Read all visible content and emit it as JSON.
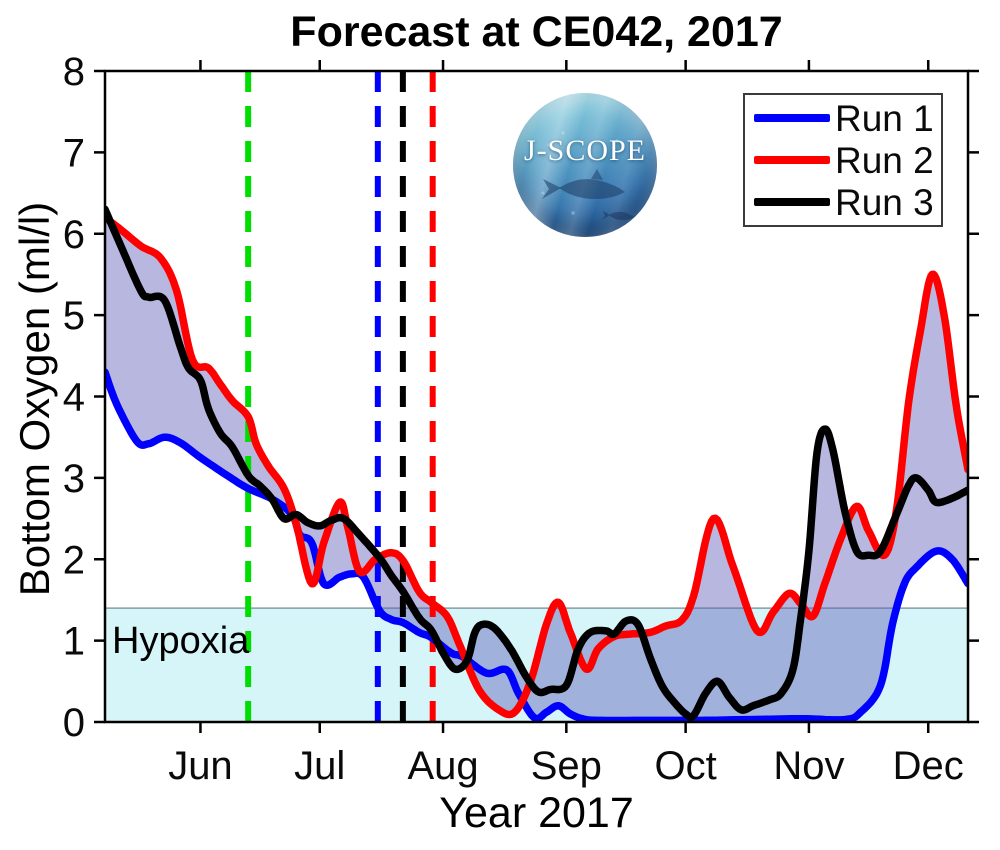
{
  "logo": {
    "text": "J-SCOPE"
  },
  "chart_data": {
    "type": "line",
    "title": "Forecast at CE042, 2017",
    "xlabel": "Year 2017",
    "ylabel": "Bottom Oxygen (ml/l)",
    "x_domain_days": [
      0,
      217
    ],
    "ylim": [
      0,
      8
    ],
    "yticks": [
      0,
      1,
      2,
      3,
      4,
      5,
      6,
      7,
      8
    ],
    "xticks": [
      {
        "label": "Jun",
        "t": 24
      },
      {
        "label": "Jul",
        "t": 54
      },
      {
        "label": "Aug",
        "t": 85
      },
      {
        "label": "Sep",
        "t": 116
      },
      {
        "label": "Oct",
        "t": 146
      },
      {
        "label": "Nov",
        "t": 177
      },
      {
        "label": "Dec",
        "t": 207
      }
    ],
    "grid": false,
    "legend_position": "top-right",
    "hypoxia": {
      "label": "Hypoxia",
      "threshold": 1.4,
      "band_color": "#d6f5f8"
    },
    "envelope_color": "rgba(95,95,185,0.45)",
    "forecast_markers": [
      {
        "name": "green-dashed-line",
        "color": "#00dd00",
        "t": 36
      },
      {
        "name": "blue-dashed-line",
        "color": "#0000ff",
        "t": 68.6
      },
      {
        "name": "black-dashed-line",
        "color": "#000000",
        "t": 74.9
      },
      {
        "name": "red-dashed-line",
        "color": "#ff0000",
        "t": 82.4
      }
    ],
    "series": [
      {
        "name": "Run 1",
        "color": "#0000ff",
        "points": [
          [
            0,
            4.3
          ],
          [
            3,
            3.9
          ],
          [
            8,
            3.45
          ],
          [
            11,
            3.42
          ],
          [
            15,
            3.5
          ],
          [
            19,
            3.43
          ],
          [
            24,
            3.25
          ],
          [
            31,
            3.02
          ],
          [
            36,
            2.87
          ],
          [
            42,
            2.74
          ],
          [
            47,
            2.55
          ],
          [
            49,
            2.3
          ],
          [
            52,
            2.2
          ],
          [
            55,
            1.7
          ],
          [
            59,
            1.78
          ],
          [
            62,
            1.82
          ],
          [
            65,
            1.78
          ],
          [
            69,
            1.37
          ],
          [
            72,
            1.26
          ],
          [
            75,
            1.22
          ],
          [
            79,
            1.1
          ],
          [
            82,
            1.04
          ],
          [
            87,
            0.85
          ],
          [
            90,
            0.8
          ],
          [
            96,
            0.6
          ],
          [
            101,
            0.64
          ],
          [
            104,
            0.35
          ],
          [
            108,
            0.05
          ],
          [
            111,
            0.12
          ],
          [
            114,
            0.2
          ],
          [
            117,
            0.1
          ],
          [
            120,
            0.04
          ],
          [
            124,
            0.02
          ],
          [
            137,
            0.02
          ],
          [
            150,
            0.02
          ],
          [
            162,
            0.03
          ],
          [
            175,
            0.04
          ],
          [
            186,
            0.03
          ],
          [
            190,
            0.12
          ],
          [
            195,
            0.45
          ],
          [
            198,
            1.2
          ],
          [
            201,
            1.7
          ],
          [
            204,
            1.9
          ],
          [
            209,
            2.1
          ],
          [
            213,
            2.0
          ],
          [
            217,
            1.7
          ]
        ]
      },
      {
        "name": "Run 2",
        "color": "#ff0000",
        "points": [
          [
            0,
            6.2
          ],
          [
            4,
            6.05
          ],
          [
            9,
            5.85
          ],
          [
            14,
            5.7
          ],
          [
            18,
            5.3
          ],
          [
            22,
            4.45
          ],
          [
            26,
            4.35
          ],
          [
            29,
            4.15
          ],
          [
            32,
            3.95
          ],
          [
            36,
            3.75
          ],
          [
            38,
            3.42
          ],
          [
            41,
            3.15
          ],
          [
            45,
            2.87
          ],
          [
            48,
            2.45
          ],
          [
            52,
            1.7
          ],
          [
            55,
            2.2
          ],
          [
            59,
            2.7
          ],
          [
            61,
            2.4
          ],
          [
            64,
            1.85
          ],
          [
            68,
            2.0
          ],
          [
            72,
            2.08
          ],
          [
            75,
            1.98
          ],
          [
            79,
            1.6
          ],
          [
            82,
            1.47
          ],
          [
            86,
            1.3
          ],
          [
            89,
            0.97
          ],
          [
            94,
            0.4
          ],
          [
            99,
            0.15
          ],
          [
            103,
            0.12
          ],
          [
            107,
            0.5
          ],
          [
            111,
            1.2
          ],
          [
            114,
            1.47
          ],
          [
            117,
            1.1
          ],
          [
            121,
            0.65
          ],
          [
            124,
            0.9
          ],
          [
            128,
            1.05
          ],
          [
            132,
            1.08
          ],
          [
            137,
            1.1
          ],
          [
            141,
            1.18
          ],
          [
            145,
            1.25
          ],
          [
            148,
            1.55
          ],
          [
            153,
            2.5
          ],
          [
            158,
            1.9
          ],
          [
            164,
            1.12
          ],
          [
            168,
            1.35
          ],
          [
            172,
            1.58
          ],
          [
            175,
            1.45
          ],
          [
            178,
            1.3
          ],
          [
            181,
            1.7
          ],
          [
            185,
            2.25
          ],
          [
            189,
            2.65
          ],
          [
            192,
            2.35
          ],
          [
            196,
            2.05
          ],
          [
            199,
            2.6
          ],
          [
            202,
            3.9
          ],
          [
            205,
            4.8
          ],
          [
            208,
            5.5
          ],
          [
            211,
            5.0
          ],
          [
            214,
            3.9
          ],
          [
            217,
            3.1
          ]
        ]
      },
      {
        "name": "Run 3",
        "color": "#000000",
        "points": [
          [
            0,
            6.3
          ],
          [
            4,
            5.85
          ],
          [
            9,
            5.3
          ],
          [
            11,
            5.22
          ],
          [
            15,
            5.18
          ],
          [
            19,
            4.6
          ],
          [
            21,
            4.35
          ],
          [
            24,
            4.2
          ],
          [
            26,
            3.85
          ],
          [
            29,
            3.55
          ],
          [
            32,
            3.38
          ],
          [
            36,
            3.03
          ],
          [
            39,
            2.9
          ],
          [
            42,
            2.74
          ],
          [
            45,
            2.5
          ],
          [
            48,
            2.55
          ],
          [
            51,
            2.45
          ],
          [
            54,
            2.41
          ],
          [
            57,
            2.48
          ],
          [
            60,
            2.5
          ],
          [
            64,
            2.3
          ],
          [
            69,
            2.02
          ],
          [
            72,
            1.8
          ],
          [
            75,
            1.6
          ],
          [
            79,
            1.28
          ],
          [
            82,
            1.13
          ],
          [
            85,
            0.85
          ],
          [
            88,
            0.65
          ],
          [
            91,
            0.75
          ],
          [
            93,
            1.1
          ],
          [
            95,
            1.2
          ],
          [
            98,
            1.15
          ],
          [
            102,
            0.9
          ],
          [
            106,
            0.55
          ],
          [
            109,
            0.37
          ],
          [
            112,
            0.4
          ],
          [
            116,
            0.45
          ],
          [
            119,
            0.9
          ],
          [
            122,
            1.1
          ],
          [
            126,
            1.12
          ],
          [
            128,
            1.08
          ],
          [
            131,
            1.24
          ],
          [
            134,
            1.2
          ],
          [
            137,
            0.8
          ],
          [
            140,
            0.45
          ],
          [
            143,
            0.25
          ],
          [
            146,
            0.1
          ],
          [
            148,
            0.08
          ],
          [
            151,
            0.35
          ],
          [
            154,
            0.5
          ],
          [
            157,
            0.3
          ],
          [
            160,
            0.15
          ],
          [
            163,
            0.2
          ],
          [
            167,
            0.27
          ],
          [
            170,
            0.35
          ],
          [
            173,
            0.65
          ],
          [
            175,
            1.3
          ],
          [
            177,
            2.1
          ],
          [
            179,
            3.3
          ],
          [
            181,
            3.6
          ],
          [
            183,
            3.35
          ],
          [
            186,
            2.6
          ],
          [
            189,
            2.1
          ],
          [
            192,
            2.05
          ],
          [
            195,
            2.1
          ],
          [
            199,
            2.55
          ],
          [
            202,
            2.9
          ],
          [
            204,
            3.0
          ],
          [
            207,
            2.85
          ],
          [
            209,
            2.7
          ],
          [
            213,
            2.75
          ],
          [
            217,
            2.85
          ]
        ]
      }
    ]
  }
}
